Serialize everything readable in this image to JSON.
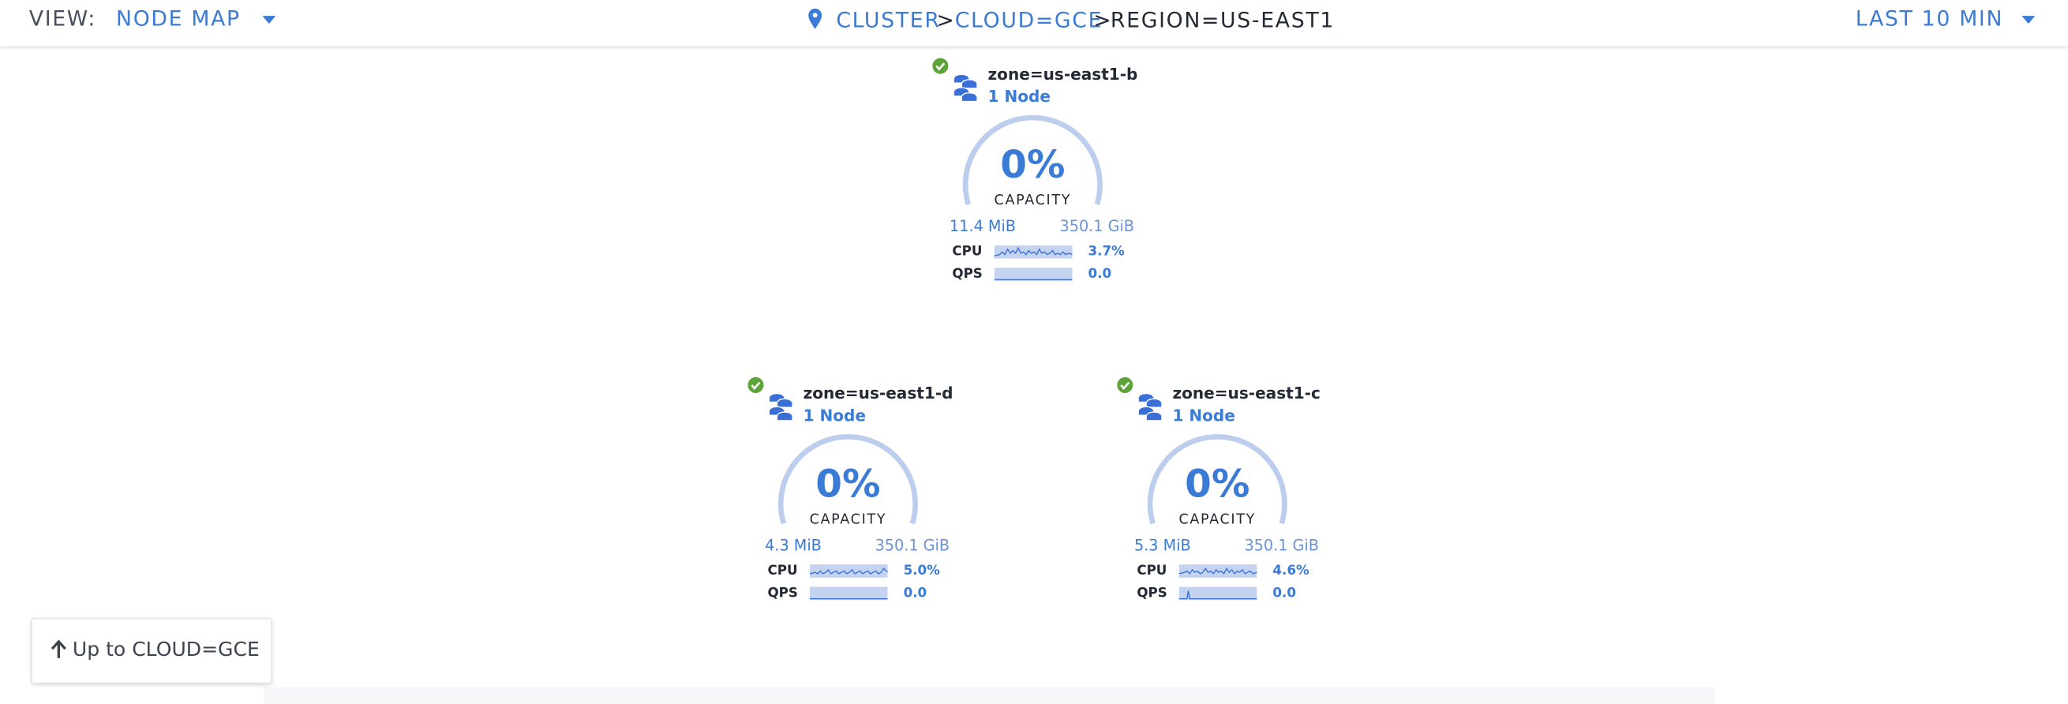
{
  "header": {
    "view_label": "VIEW:",
    "view_value": "NODE MAP",
    "breadcrumb": [
      "CLUSTER",
      "CLOUD=GCE",
      "REGION=US-EAST1"
    ],
    "separator": ">",
    "time_range": "LAST 10 MIN"
  },
  "nodes": [
    {
      "name": "zone=us-east1-b",
      "count": "1 Node",
      "capacity": "0%",
      "capacity_label": "CAPACITY",
      "used": "11.4 MiB",
      "total": "350.1 GiB",
      "metrics": [
        {
          "label": "CPU",
          "value": "3.7%"
        },
        {
          "label": "QPS",
          "value": "0.0"
        }
      ]
    },
    {
      "name": "zone=us-east1-d",
      "count": "1 Node",
      "capacity": "0%",
      "capacity_label": "CAPACITY",
      "used": "4.3 MiB",
      "total": "350.1 GiB",
      "metrics": [
        {
          "label": "CPU",
          "value": "5.0%"
        },
        {
          "label": "QPS",
          "value": "0.0"
        }
      ]
    },
    {
      "name": "zone=us-east1-c",
      "count": "1 Node",
      "capacity": "0%",
      "capacity_label": "CAPACITY",
      "used": "5.3 MiB",
      "total": "350.1 GiB",
      "metrics": [
        {
          "label": "CPU",
          "value": "4.6%"
        },
        {
          "label": "QPS",
          "value": "0.0"
        }
      ]
    }
  ],
  "button": "Up to CLOUD=GCE"
}
